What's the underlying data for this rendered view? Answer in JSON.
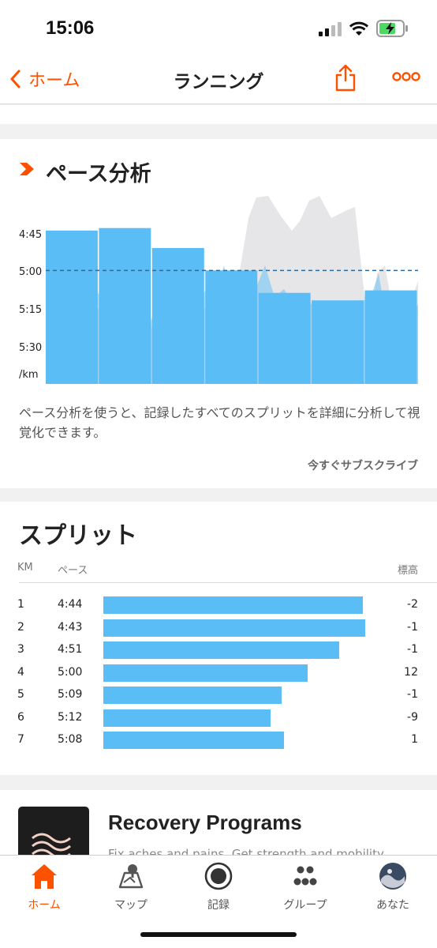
{
  "status": {
    "time": "15:06"
  },
  "nav": {
    "back_label": "ホーム",
    "title": "ランニング"
  },
  "pace_analysis": {
    "title": "ペース分析",
    "y_labels": [
      "4:45",
      "5:00",
      "5:15",
      "5:30",
      "/km"
    ],
    "description": "ペース分析を使うと、記録したすべてのスプリットを詳細に分析して視覚化できます。",
    "subscribe_label": "今すぐサブスクライブ",
    "colors": {
      "bar": "#5bbdf6",
      "elevation": "#e6e6e8",
      "avg_line": "#2b6a99",
      "accent": "#fc5200"
    }
  },
  "chart_data": {
    "type": "bar",
    "categories": [
      "1",
      "2",
      "3",
      "4",
      "5",
      "6",
      "7"
    ],
    "values": [
      "4:44",
      "4:43",
      "4:51",
      "5:00",
      "5:09",
      "5:12",
      "5:08"
    ],
    "ylim": [
      "4:45",
      "5:30"
    ],
    "ylabel": "/km",
    "average_line": "5:00"
  },
  "splits": {
    "title": "スプリット",
    "col_km": "KM",
    "col_pace": "ペース",
    "col_elev": "標高",
    "rows": [
      {
        "km": "1",
        "pace": "4:44",
        "elev": "-2",
        "fraction": 0.99
      },
      {
        "km": "2",
        "pace": "4:43",
        "elev": "-1",
        "fraction": 1.0
      },
      {
        "km": "3",
        "pace": "4:51",
        "elev": "-1",
        "fraction": 0.9
      },
      {
        "km": "4",
        "pace": "5:00",
        "elev": "12",
        "fraction": 0.78
      },
      {
        "km": "5",
        "pace": "5:09",
        "elev": "-1",
        "fraction": 0.68
      },
      {
        "km": "6",
        "pace": "5:12",
        "elev": "-9",
        "fraction": 0.64
      },
      {
        "km": "7",
        "pace": "5:08",
        "elev": "1",
        "fraction": 0.69
      }
    ]
  },
  "promo": {
    "title": "Recovery Programs",
    "subtitle": "Fix aches and pains. Get strength and mobility"
  },
  "tabbar": {
    "home": "ホーム",
    "map": "マップ",
    "record": "記録",
    "group": "グループ",
    "you": "あなた"
  }
}
